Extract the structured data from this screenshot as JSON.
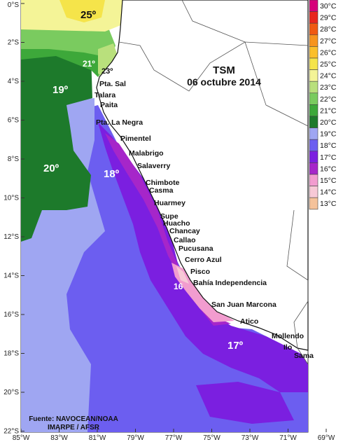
{
  "title": {
    "line1": "TSM",
    "line2": "06 octubre 2014"
  },
  "source": {
    "line1": "Fuente: NAVOCEAN/NOAA",
    "line2": "IMARPE / AFSR"
  },
  "lat_ticks": [
    "0°S",
    "2°S",
    "4°S",
    "6°S",
    "8°S",
    "10°S",
    "12°S",
    "14°S",
    "16°S",
    "18°S",
    "20°S",
    "22°S"
  ],
  "lon_ticks": [
    "85°W",
    "83°W",
    "81°W",
    "79°W",
    "77°W",
    "75°W",
    "73°W",
    "71°W",
    "69°W"
  ],
  "legend": [
    {
      "label": "30°C",
      "color": "#d6007a"
    },
    {
      "label": "29°C",
      "color": "#e8261e"
    },
    {
      "label": "28°C",
      "color": "#f05a12"
    },
    {
      "label": "27°C",
      "color": "#f7941d"
    },
    {
      "label": "26°C",
      "color": "#fbbf2a"
    },
    {
      "label": "25°C",
      "color": "#f5e44a"
    },
    {
      "label": "24°C",
      "color": "#f4f497"
    },
    {
      "label": "23°C",
      "color": "#b9e07c"
    },
    {
      "label": "22°C",
      "color": "#7acb5f"
    },
    {
      "label": "21°C",
      "color": "#3da83a"
    },
    {
      "label": "20°C",
      "color": "#1d7a2b"
    },
    {
      "label": "19°C",
      "color": "#9fa6f2"
    },
    {
      "label": "18°C",
      "color": "#6c5ef0"
    },
    {
      "label": "17°C",
      "color": "#7b1fe0"
    },
    {
      "label": "16°C",
      "color": "#a626c9"
    },
    {
      "label": "15°C",
      "color": "#f29ccf"
    },
    {
      "label": "14°C",
      "color": "#f7c9d6"
    },
    {
      "label": "13°C",
      "color": "#f5c29a"
    }
  ],
  "isotherm_labels": [
    "25º",
    "21º",
    "23º",
    "19º",
    "20º",
    "18º",
    "16",
    "17º"
  ],
  "places": [
    "Pta. Sal",
    "Talara",
    "Paita",
    "Pta. La Negra",
    "Pimentel",
    "Malabrigo",
    "Salaverry",
    "Chimbote",
    "Casma",
    "Huarmey",
    "Supe",
    "Huacho",
    "Chancay",
    "Callao",
    "Pucusana",
    "Cerro Azul",
    "Pisco",
    "Bahía Independencia",
    "San Juan Marcona",
    "Atico",
    "Mollendo",
    "Ilo",
    "Sama"
  ]
}
